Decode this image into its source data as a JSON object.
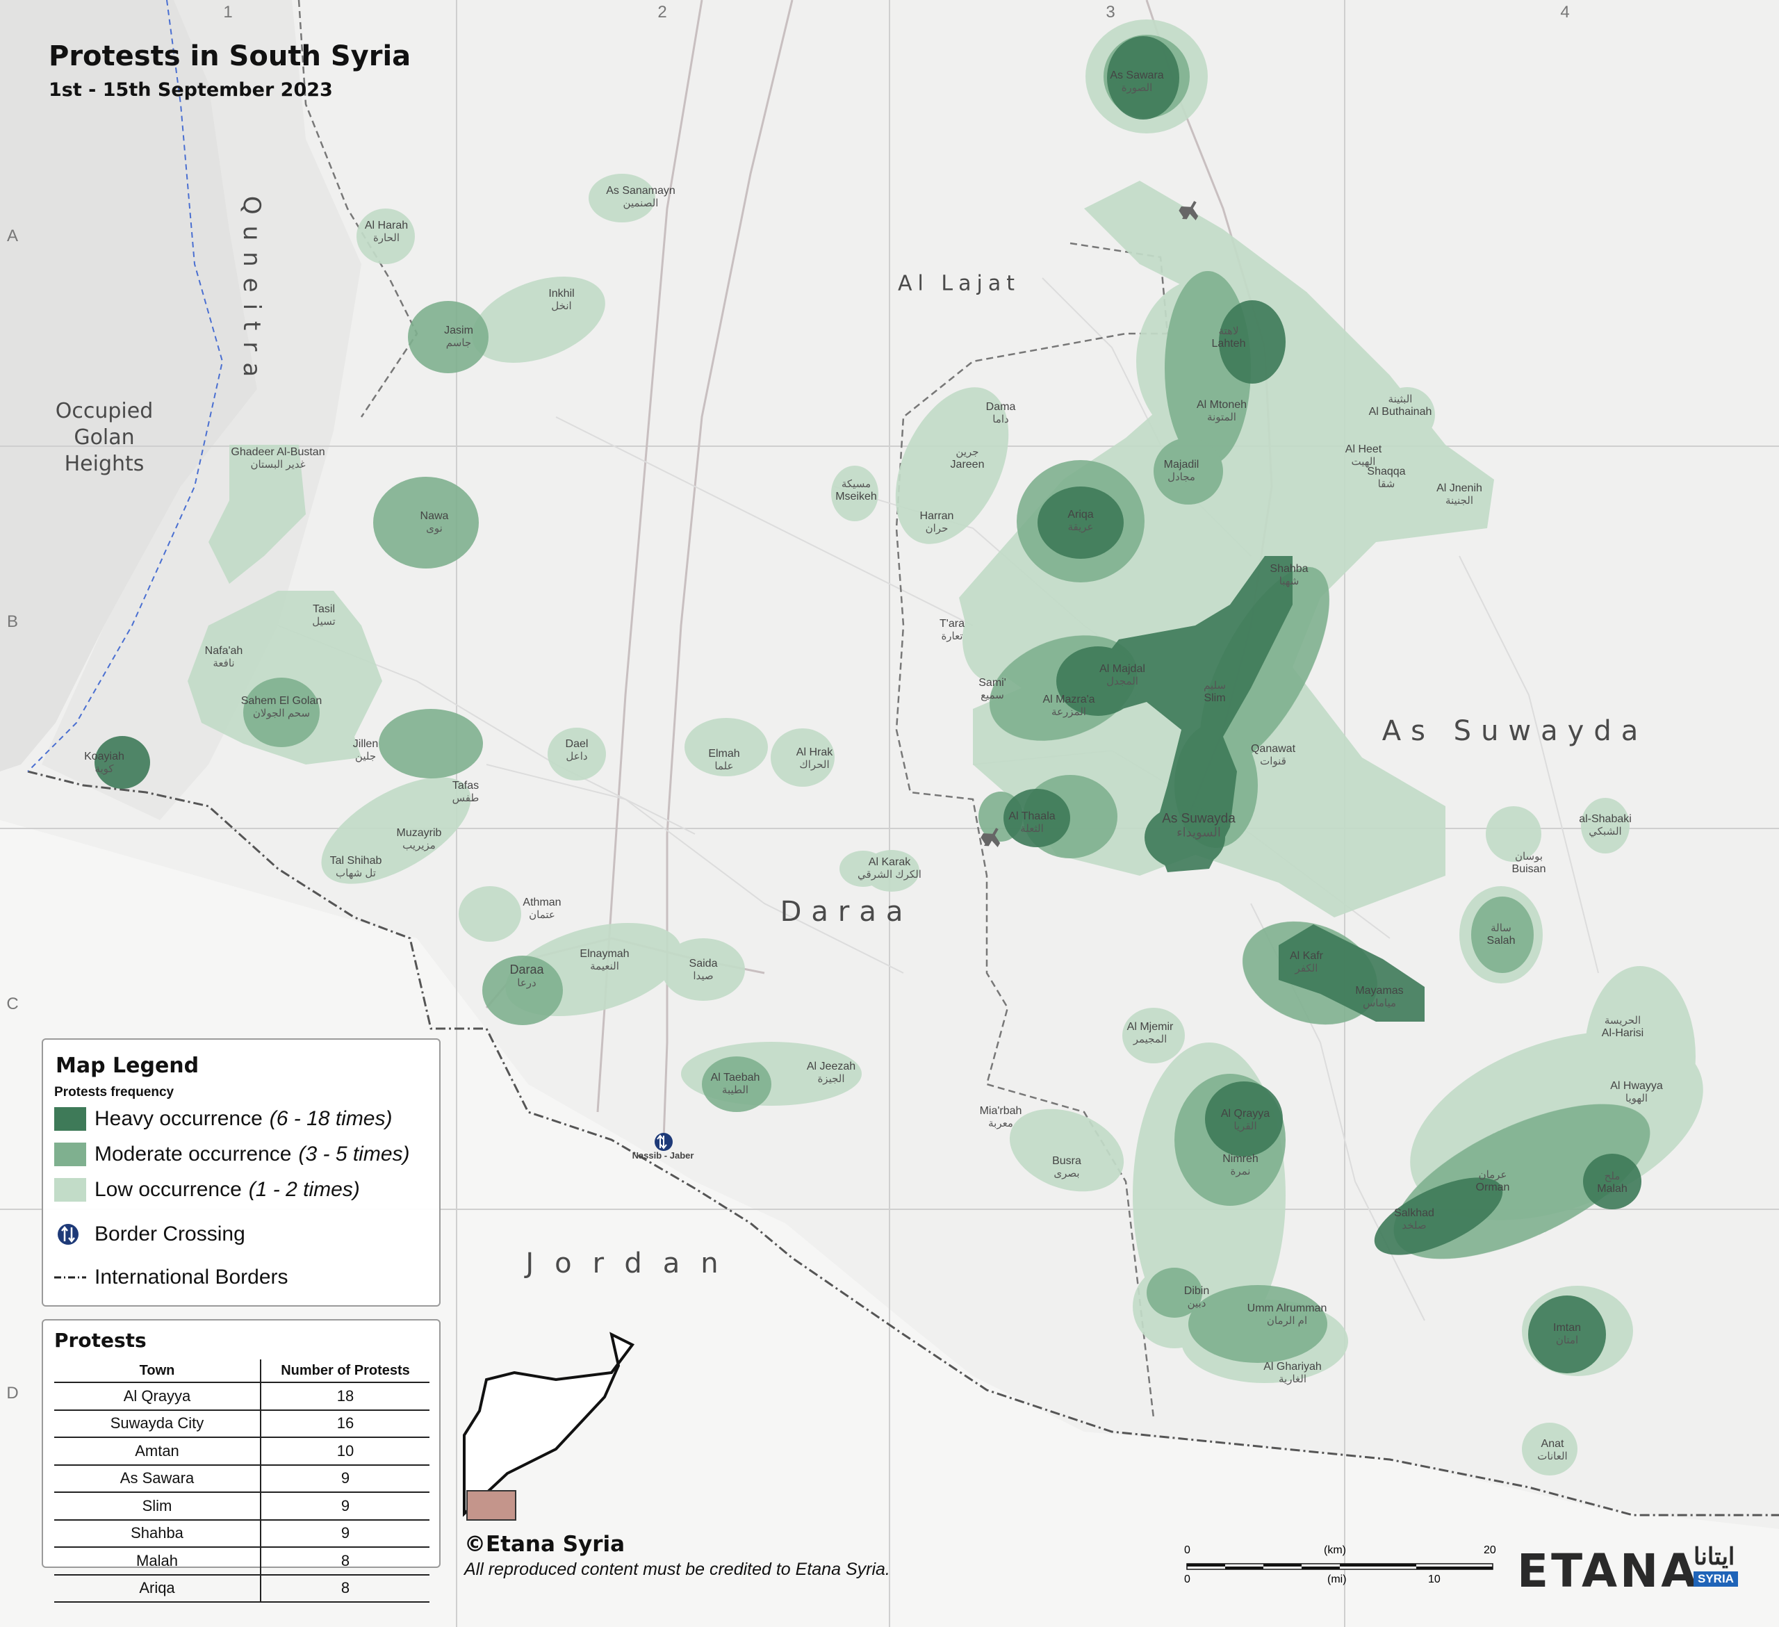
{
  "title": "Protests in South Syria",
  "subtitle": "1st - 15th September 2023",
  "colors": {
    "heavy": "#3e7a58",
    "moderate": "#7fb08f",
    "low": "#c2dcc8",
    "background": "#f0f0ef",
    "border_line": "#555555",
    "inset_box": "#c4958b"
  },
  "grid": {
    "columns": [
      "1",
      "2",
      "3",
      "4"
    ],
    "rows": [
      "A",
      "B",
      "C",
      "D"
    ]
  },
  "regions": {
    "quneitra": "Quneitra",
    "golan": "Occupied\nGolan\nHeights",
    "lajat": "Al Lajat",
    "suwayda": "As Suwayda",
    "daraa": "Daraa",
    "jordan": "Jordan"
  },
  "places": [
    {
      "id": "as-sawara",
      "en": "As Sawara",
      "ar": "الصورة"
    },
    {
      "id": "lahteh",
      "en": "Lahteh",
      "ar": "لاهتة"
    },
    {
      "id": "al-mtoneh",
      "en": "Al Mtoneh",
      "ar": "المتونة"
    },
    {
      "id": "majadil",
      "en": "Majadil",
      "ar": "مجادل"
    },
    {
      "id": "ariqa",
      "en": "Ariqa",
      "ar": "عريقة"
    },
    {
      "id": "shahba",
      "en": "Shahba",
      "ar": "شهبا"
    },
    {
      "id": "shaqqa",
      "en": "Shaqqa",
      "ar": "شقا"
    },
    {
      "id": "al-majdal",
      "en": "Al Majdal",
      "ar": "المجدل"
    },
    {
      "id": "al-mazraa",
      "en": "Al Mazra'a",
      "ar": "المزرعة"
    },
    {
      "id": "as-suwayda",
      "en": "As Suwayda",
      "ar": "السويداء"
    },
    {
      "id": "al-thaala",
      "en": "Al Thaala",
      "ar": "الثعلة"
    },
    {
      "id": "al-kafr",
      "en": "Al Kafr",
      "ar": "الكفر"
    },
    {
      "id": "mayamas",
      "en": "Mayamas",
      "ar": "مياماس"
    },
    {
      "id": "al-qrayya",
      "en": "Al Qrayya",
      "ar": "القريا"
    },
    {
      "id": "orman",
      "en": "Orman",
      "ar": "عرمان"
    },
    {
      "id": "malah",
      "en": "Malah",
      "ar": "ملح"
    },
    {
      "id": "salkhad",
      "en": "Salkhad",
      "ar": "صلخد"
    },
    {
      "id": "imtan",
      "en": "Imtan",
      "ar": "امتان"
    },
    {
      "id": "nawa",
      "en": "Nawa",
      "ar": "نوى"
    },
    {
      "id": "jasim",
      "en": "Jasim",
      "ar": "جاسم"
    },
    {
      "id": "daraa-city",
      "en": "Daraa",
      "ar": "درعا"
    },
    {
      "id": "dama",
      "en": "Dama",
      "ar": "داما"
    },
    {
      "id": "jareen",
      "en": "Jareen",
      "ar": "جرين"
    },
    {
      "id": "salah",
      "en": "Salah",
      "ar": "سالة"
    },
    {
      "id": "buisan",
      "en": "Buisan",
      "ar": "بوسان"
    },
    {
      "id": "al-harisi",
      "en": "Al-Harisi",
      "ar": "الحريسة"
    },
    {
      "id": "al-hwayya",
      "en": "Al Hwayya",
      "ar": "الهويا"
    },
    {
      "id": "nimreh",
      "en": "Nimreh",
      "ar": "نمرة"
    },
    {
      "id": "dibin",
      "en": "Dibin",
      "ar": "دبين"
    },
    {
      "id": "umm-alrumman",
      "en": "Umm Alrumman",
      "ar": "ام الرمان"
    },
    {
      "id": "al-ghariyah",
      "en": "Al Ghariyah",
      "ar": "الغارية"
    },
    {
      "id": "busra",
      "en": "Busra",
      "ar": "بصرى"
    },
    {
      "id": "al-taebah",
      "en": "Al Taebah",
      "ar": "الطيبة"
    },
    {
      "id": "saida",
      "en": "Saida",
      "ar": "صيدا"
    },
    {
      "id": "tafas",
      "en": "Tafas",
      "ar": "طفس"
    },
    {
      "id": "tal-shihab",
      "en": "Tal Shihab",
      "ar": "تل شهاب"
    },
    {
      "id": "sahem",
      "en": "Sahem El Golan",
      "ar": "سحم الجولان"
    },
    {
      "id": "nafaah",
      "en": "Nafa'ah",
      "ar": "نافعة"
    },
    {
      "id": "tasil",
      "en": "Tasil",
      "ar": "تسيل"
    },
    {
      "id": "jillen",
      "en": "Jillen",
      "ar": "جلين"
    },
    {
      "id": "koayiah",
      "en": "Koayiah",
      "ar": "كوية"
    },
    {
      "id": "dael",
      "en": "Dael",
      "ar": "داعل"
    },
    {
      "id": "al-hrak",
      "en": "Al Hrak",
      "ar": "الحراك"
    },
    {
      "id": "inkhil",
      "en": "Inkhil",
      "ar": "انخل"
    },
    {
      "id": "as-sanamayn",
      "en": "As Sanamayn",
      "ar": "الصنمين"
    },
    {
      "id": "al-harah",
      "en": "Al Harah",
      "ar": "الحارة"
    },
    {
      "id": "mseikeh",
      "en": "Mseikeh",
      "ar": "مسيكة"
    },
    {
      "id": "al-karak",
      "en": "Al Karak",
      "ar": "الكرك الشرقي"
    },
    {
      "id": "elnaymah",
      "en": "Elnaymah",
      "ar": "النعيمة"
    },
    {
      "id": "harran",
      "en": "Harran",
      "ar": "حران"
    },
    {
      "id": "al-heet",
      "en": "Al Heet",
      "ar": "الهيت"
    },
    {
      "id": "al-bhuthainah",
      "en": "Al Buthainah",
      "ar": "البثينة"
    },
    {
      "id": "al-jnenih",
      "en": "Al Jnenih",
      "ar": "الجنينة"
    },
    {
      "id": "al-mjemir",
      "en": "Al Mjemir",
      "ar": "المجيمر"
    },
    {
      "id": "miarbah",
      "en": "Mia'rbah",
      "ar": "معربة"
    },
    {
      "id": "al-jeezah",
      "en": "Al Jeezah",
      "ar": "الجيزة"
    },
    {
      "id": "al-shabaki",
      "en": "al-Shabaki",
      "ar": "الشبكي"
    },
    {
      "id": "anat",
      "en": "Anat",
      "ar": "العانات"
    },
    {
      "id": "ghadeer",
      "en": "Ghadeer Al-Bustan",
      "ar": "غدير البستان"
    },
    {
      "id": "nassib",
      "en": "Nassib - Jaber",
      "ar": ""
    },
    {
      "id": "elmah",
      "en": "Elmah",
      "ar": "علما"
    },
    {
      "id": "qanawat",
      "en": "Qanawat",
      "ar": "قنوات"
    },
    {
      "id": "slim",
      "en": "Slim",
      "ar": "سليم"
    },
    {
      "id": "athman",
      "en": "Athman",
      "ar": "عتمان"
    },
    {
      "id": "samis",
      "en": "Sami'",
      "ar": "سميع"
    },
    {
      "id": "mazeeraib",
      "en": "Muzayrib",
      "ar": "مزيريب"
    },
    {
      "id": "tara",
      "en": "T'ara",
      "ar": "تعارة"
    }
  ],
  "legend": {
    "title": "Map Legend",
    "subtitle": "Protests frequency",
    "heavy_label": "Heavy occurrence",
    "heavy_range": "(6 - 18 times)",
    "moderate_label": "Moderate occurrence",
    "moderate_range": "(3 - 5 times)",
    "low_label": "Low occurrence",
    "low_range": "(1 - 2 times)",
    "crossing_label": "Border Crossing",
    "borders_label": "International Borders"
  },
  "protests_table": {
    "title": "Protests",
    "col_town": "Town",
    "col_count": "Number of Protests",
    "rows": [
      {
        "town": "Al Qrayya",
        "count": "18"
      },
      {
        "town": "Suwayda City",
        "count": "16"
      },
      {
        "town": "Amtan",
        "count": "10"
      },
      {
        "town": "As Sawara",
        "count": "9"
      },
      {
        "town": "Slim",
        "count": "9"
      },
      {
        "town": "Shahba",
        "count": "9"
      },
      {
        "town": "Malah",
        "count": "8"
      },
      {
        "town": "Ariqa",
        "count": "8"
      }
    ]
  },
  "credit": {
    "main": "©Etana Syria",
    "note": "All reproduced content must be credited to Etana Syria."
  },
  "scale": {
    "km_unit": "(km)",
    "mi_unit": "(mi)",
    "km_start": "0",
    "km_end": "20",
    "mi_start": "0",
    "mi_end": "10"
  },
  "brand": {
    "name": "ETANA",
    "arabic": "ايتانا",
    "tag": "SYRIA"
  }
}
